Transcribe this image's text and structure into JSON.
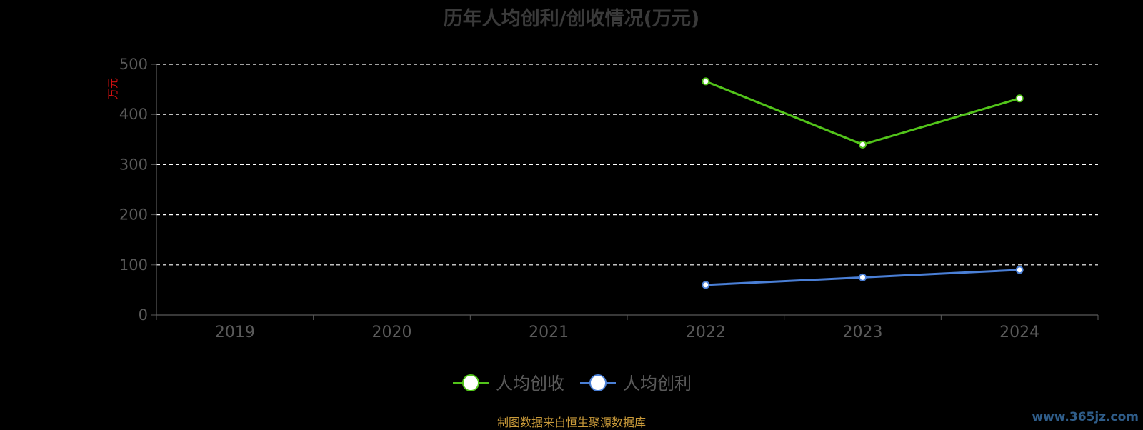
{
  "title": "历年人均创利/创收情况(万元)",
  "source_note": "制图数据来自恒生聚源数据库",
  "watermark": "www.365jz.com",
  "colors": {
    "background": "#000000",
    "title": "#3a3a3a",
    "axis": "#5a5a5a",
    "grid": "#ffffff",
    "ylabel": "#d01010",
    "source": "#c99a3a"
  },
  "chart_data": {
    "type": "line",
    "title": "历年人均创利/创收情况(万元)",
    "ylabel": "万元",
    "xlabel": "",
    "categories": [
      "2019",
      "2020",
      "2021",
      "2022",
      "2023",
      "2024"
    ],
    "ylim": [
      0,
      500
    ],
    "yticks": [
      0,
      100,
      200,
      300,
      400,
      500
    ],
    "grid": true,
    "grid_style": "dashed",
    "legend_position": "bottom",
    "series": [
      {
        "name": "人均创收",
        "color": "#52c41a",
        "values": [
          null,
          null,
          null,
          466,
          340,
          432
        ]
      },
      {
        "name": "人均创利",
        "color": "#4a7fd6",
        "values": [
          null,
          null,
          null,
          60,
          75,
          90
        ]
      }
    ]
  }
}
